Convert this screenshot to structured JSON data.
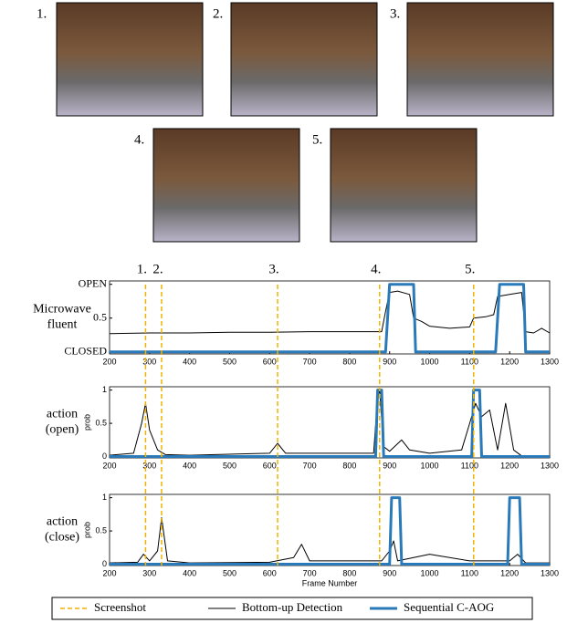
{
  "images": {
    "labels": [
      "1.",
      "2.",
      "3.",
      "4.",
      "5."
    ]
  },
  "screenshots": {
    "name": "Screenshot",
    "color": "#f0b400",
    "labels": [
      "1.",
      "2.",
      "3.",
      "4.",
      "5."
    ],
    "frames": [
      290,
      330,
      620,
      875,
      1110
    ]
  },
  "chart_data": [
    {
      "type": "line",
      "row_label": [
        "Microwave",
        "fluent"
      ],
      "xlim": [
        200,
        1300
      ],
      "xticks": [
        200,
        300,
        400,
        500,
        600,
        700,
        800,
        900,
        1000,
        1100,
        1200,
        1300
      ],
      "ylim": [
        -0.03,
        1.05
      ],
      "yticks": [
        {
          "value": 0,
          "label": "CLOSED"
        },
        0.5,
        {
          "value": 1,
          "label": "OPEN"
        }
      ],
      "series": [
        {
          "name": "Bottom-up Detection",
          "color": "#000000",
          "width": 1,
          "x": [
            200,
            300,
            400,
            500,
            600,
            700,
            800,
            880,
            890,
            900,
            920,
            950,
            960,
            980,
            1000,
            1050,
            1100,
            1110,
            1140,
            1160,
            1170,
            1200,
            1230,
            1240,
            1260,
            1280,
            1300
          ],
          "values": [
            0.27,
            0.28,
            0.28,
            0.29,
            0.29,
            0.3,
            0.3,
            0.3,
            0.6,
            0.88,
            0.9,
            0.85,
            0.5,
            0.45,
            0.38,
            0.35,
            0.37,
            0.5,
            0.52,
            0.55,
            0.82,
            0.85,
            0.88,
            0.3,
            0.28,
            0.35,
            0.28
          ]
        },
        {
          "name": "Sequential C-AOG",
          "color": "#2a7ab9",
          "width": 3,
          "x": [
            200,
            890,
            900,
            960,
            965,
            1165,
            1175,
            1235,
            1240,
            1300
          ],
          "values": [
            0,
            0,
            1,
            1,
            0,
            0,
            1,
            1,
            0,
            0
          ]
        }
      ]
    },
    {
      "type": "line",
      "row_label": [
        "action",
        "(open)"
      ],
      "ylabel": "prob",
      "xlim": [
        200,
        1300
      ],
      "xticks": [
        200,
        300,
        400,
        500,
        600,
        700,
        800,
        900,
        1000,
        1100,
        1200,
        1300
      ],
      "ylim": [
        -0.02,
        1.05
      ],
      "yticks": [
        0,
        0.5,
        1
      ],
      "series": [
        {
          "name": "Bottom-up Detection",
          "color": "#000000",
          "width": 1,
          "x": [
            200,
            260,
            280,
            290,
            300,
            320,
            340,
            400,
            600,
            620,
            640,
            860,
            870,
            875,
            885,
            900,
            930,
            950,
            1000,
            1080,
            1100,
            1115,
            1130,
            1150,
            1170,
            1190,
            1210,
            1230,
            1300
          ],
          "values": [
            0.02,
            0.05,
            0.5,
            0.8,
            0.4,
            0.1,
            0.03,
            0.02,
            0.05,
            0.2,
            0.05,
            0.05,
            0.9,
            1,
            0.15,
            0.08,
            0.25,
            0.1,
            0.05,
            0.1,
            0.5,
            0.8,
            0.6,
            0.7,
            0.1,
            0.8,
            0.1,
            0.01,
            0.01
          ]
        },
        {
          "name": "Sequential C-AOG",
          "color": "#2a7ab9",
          "width": 3,
          "x": [
            200,
            865,
            870,
            880,
            885,
            1105,
            1110,
            1125,
            1130,
            1300
          ],
          "values": [
            0,
            0,
            1,
            1,
            0,
            0,
            1,
            1,
            0,
            0
          ]
        }
      ]
    },
    {
      "type": "line",
      "row_label": [
        "action",
        "(close)"
      ],
      "ylabel": "prob",
      "xlabel": "Frame Number",
      "xlim": [
        200,
        1300
      ],
      "xticks": [
        200,
        300,
        400,
        500,
        600,
        700,
        800,
        900,
        1000,
        1100,
        1200,
        1300
      ],
      "ylim": [
        -0.02,
        1.05
      ],
      "yticks": [
        0,
        0.5,
        1
      ],
      "series": [
        {
          "name": "Bottom-up Detection",
          "color": "#000000",
          "width": 1,
          "x": [
            200,
            270,
            285,
            300,
            320,
            330,
            345,
            400,
            600,
            660,
            680,
            700,
            880,
            900,
            910,
            920,
            1000,
            1100,
            1200,
            1220,
            1240,
            1300
          ],
          "values": [
            0.02,
            0.03,
            0.15,
            0.05,
            0.2,
            0.7,
            0.05,
            0.02,
            0.03,
            0.1,
            0.3,
            0.05,
            0.05,
            0.2,
            0.35,
            0.05,
            0.15,
            0.05,
            0.05,
            0.15,
            0.02,
            0.02
          ]
        },
        {
          "name": "Sequential C-AOG",
          "color": "#2a7ab9",
          "width": 3,
          "x": [
            200,
            900,
            905,
            925,
            930,
            1195,
            1200,
            1225,
            1230,
            1300
          ],
          "values": [
            0,
            0,
            1,
            1,
            0,
            0,
            1,
            1,
            0,
            0
          ]
        }
      ]
    }
  ]
}
